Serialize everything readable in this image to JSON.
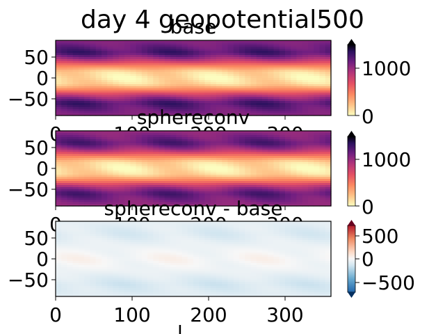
{
  "figure": {
    "suptitle": "day 4 geopotential500"
  },
  "chart_data": [
    {
      "type": "heatmap",
      "title": "base",
      "xlabel": "",
      "ylabel": "",
      "xlim": [
        0,
        360
      ],
      "ylim": [
        -90,
        90
      ],
      "xticks": [
        0,
        100,
        200,
        300
      ],
      "yticks": [
        50,
        0,
        -50
      ],
      "xtick_labels": [
        "0",
        "100",
        "200",
        "300"
      ],
      "ytick_labels": [
        "50",
        "0",
        "−50"
      ],
      "colormap": "magma_r",
      "colorbar": {
        "range": [
          0,
          1500
        ],
        "ticks": [
          0,
          1000
        ],
        "tick_labels": [
          "0",
          "1000"
        ],
        "extend": "max"
      },
      "values_description_by_latitude": {
        "lat": [
          -90,
          -60,
          -45,
          -30,
          -15,
          0,
          15,
          30,
          45,
          60,
          90
        ],
        "value": [
          1050,
          1250,
          950,
          500,
          150,
          80,
          150,
          500,
          950,
          1250,
          1050
        ]
      }
    },
    {
      "type": "heatmap",
      "title": "sphereconv",
      "xlabel": "",
      "ylabel": "",
      "xlim": [
        0,
        360
      ],
      "ylim": [
        -90,
        90
      ],
      "xticks": [
        0,
        100,
        200,
        300
      ],
      "yticks": [
        50,
        0,
        -50
      ],
      "xtick_labels": [
        "0",
        "100",
        "200",
        "300"
      ],
      "ytick_labels": [
        "50",
        "0",
        "−50"
      ],
      "colormap": "magma_r",
      "colorbar": {
        "range": [
          0,
          1500
        ],
        "ticks": [
          0,
          1000
        ],
        "tick_labels": [
          "0",
          "1000"
        ],
        "extend": "max"
      },
      "values_description_by_latitude": {
        "lat": [
          -90,
          -60,
          -45,
          -30,
          -15,
          0,
          15,
          30,
          45,
          60,
          90
        ],
        "value": [
          1000,
          1200,
          950,
          500,
          150,
          80,
          150,
          500,
          950,
          1200,
          1000
        ]
      }
    },
    {
      "type": "heatmap",
      "title": "sphereconv - base",
      "xlabel": "l",
      "ylabel": "",
      "xlim": [
        0,
        360
      ],
      "ylim": [
        -90,
        90
      ],
      "xticks": [
        0,
        100,
        200,
        300
      ],
      "yticks": [
        50,
        0,
        -50
      ],
      "xtick_labels": [
        "0",
        "100",
        "200",
        "300"
      ],
      "ytick_labels": [
        "50",
        "0",
        "−50"
      ],
      "colormap": "RdBu_r",
      "colorbar": {
        "range": [
          -700,
          700
        ],
        "ticks": [
          500,
          0,
          -500
        ],
        "tick_labels": [
          "500",
          "0",
          "−500"
        ],
        "extend": "both"
      },
      "values_description_by_latitude": {
        "lat": [
          -90,
          -60,
          -30,
          0,
          30,
          60,
          90
        ],
        "value": [
          -80,
          -120,
          -40,
          10,
          -40,
          -100,
          -60
        ]
      }
    }
  ]
}
